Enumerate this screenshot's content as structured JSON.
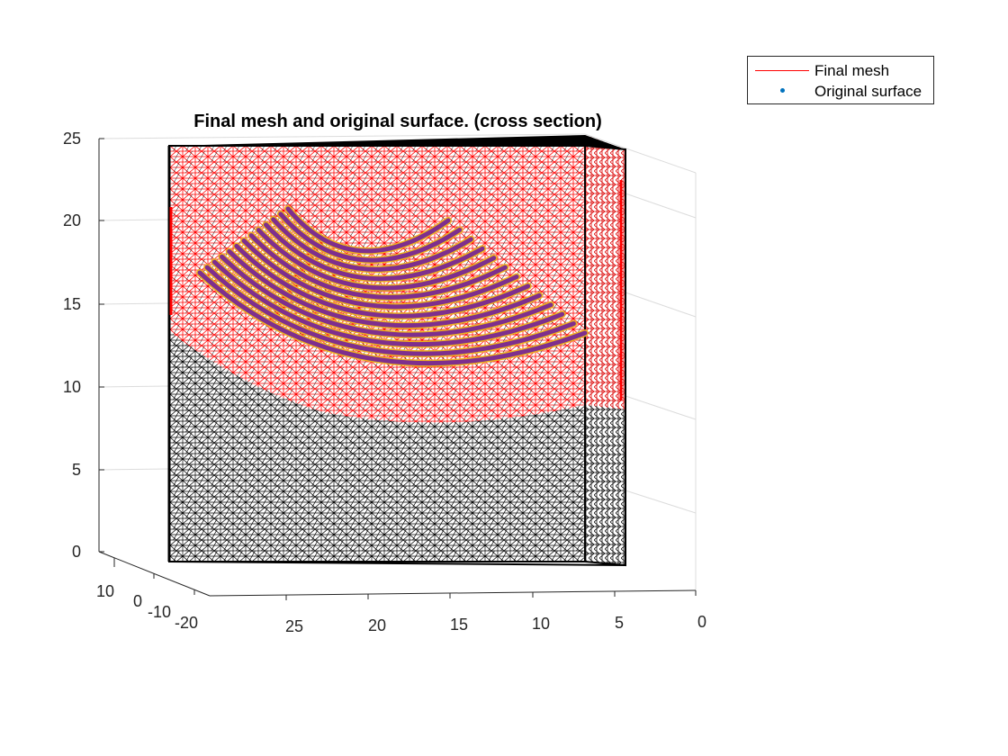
{
  "chart_data": {
    "type": "3d-mesh",
    "title": "Final mesh and original surface. (cross section)",
    "z_ticks": [
      "0",
      "5",
      "10",
      "15",
      "20",
      "25"
    ],
    "x_ticks": [
      "25",
      "20",
      "15",
      "10",
      "5",
      "0"
    ],
    "y_ticks": [
      "10",
      "0",
      "-10",
      "-20"
    ],
    "zlim": [
      0,
      25
    ],
    "xlim": [
      0,
      28
    ],
    "grid": true,
    "legend_placement": "top-right, outside axes",
    "series": [
      {
        "name": "Final mesh",
        "style": "line",
        "color": "#ff0000"
      },
      {
        "name": "Original surface",
        "style": "marker",
        "color": "#0072bd"
      }
    ],
    "surface_strips": 13
  },
  "colors": {
    "mesh_red": "#ff0000",
    "mesh_black": "#000000",
    "surface_purple": "#7e2f8e",
    "surface_orange": "#edb120",
    "axis": "#262626",
    "grid": "#dcdcdc"
  }
}
